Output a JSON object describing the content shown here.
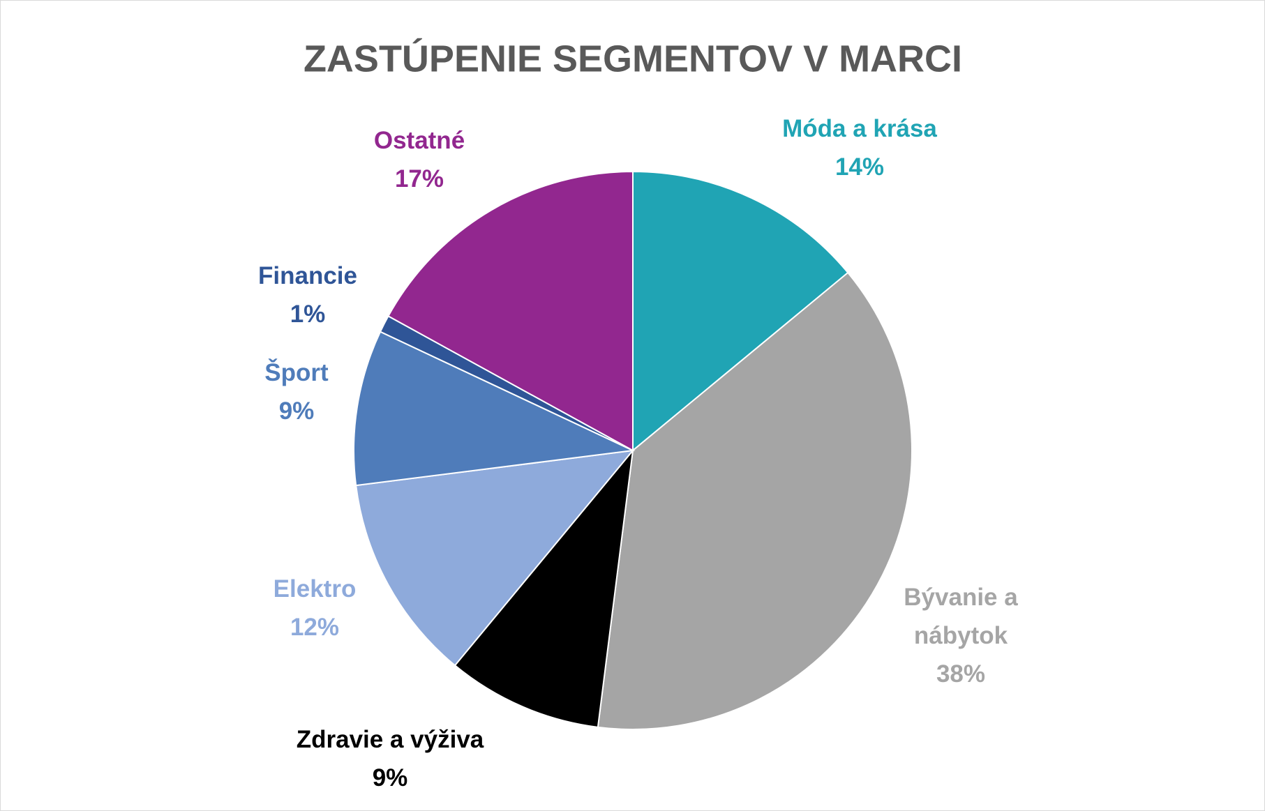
{
  "chart_data": {
    "type": "pie",
    "title": "ZASTÚPENIE SEGMENTOV V MARCI",
    "categories": [
      "Móda a krása",
      "Bývanie a nábytok",
      "Zdravie a výživa",
      "Elektro",
      "Šport",
      "Financie",
      "Ostatné"
    ],
    "values": [
      14,
      38,
      9,
      12,
      9,
      1,
      17
    ],
    "value_labels": [
      "14%",
      "38%",
      "9%",
      "12%",
      "9%",
      "1%",
      "17%"
    ],
    "colors": [
      "#20a4b4",
      "#a5a5a5",
      "#000000",
      "#8eaadb",
      "#4f7cba",
      "#2f5597",
      "#92278f"
    ],
    "label_colors": [
      "#20a4b4",
      "#a5a5a5",
      "#000000",
      "#8eaadb",
      "#4f7cba",
      "#2f5597",
      "#92278f"
    ]
  }
}
